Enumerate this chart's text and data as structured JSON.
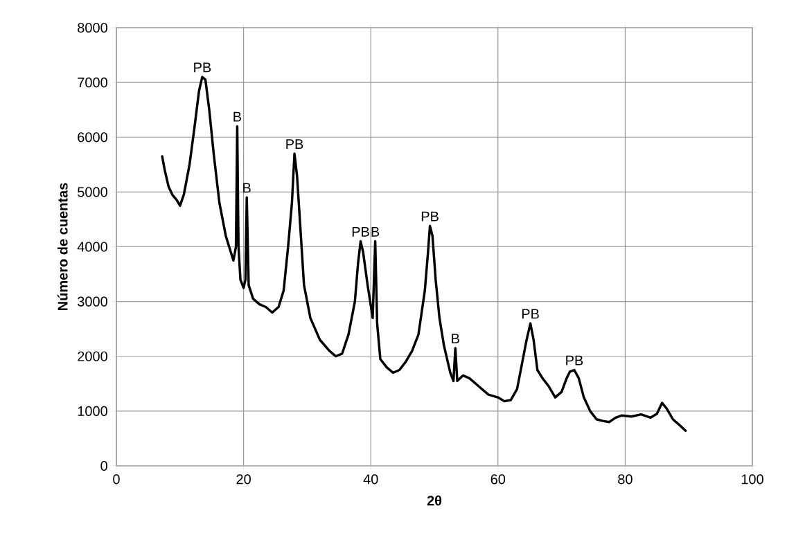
{
  "chart_data": {
    "type": "line",
    "xlabel": "2θ",
    "ylabel": "Número de cuentas",
    "x": [
      7.2,
      7.6,
      8.2,
      8.8,
      9.5,
      10.0,
      10.6,
      11.5,
      12.3,
      13.0,
      13.5,
      14.0,
      14.6,
      15.3,
      16.2,
      17.2,
      18.0,
      18.4,
      18.8,
      19.0,
      19.2,
      19.5,
      20.0,
      20.3,
      20.5,
      20.8,
      21.5,
      22.5,
      23.5,
      24.5,
      25.5,
      26.3,
      27.0,
      27.6,
      28.0,
      28.4,
      28.9,
      29.5,
      30.5,
      32,
      33.5,
      34.5,
      35.5,
      36.5,
      37.5,
      38.0,
      38.4,
      38.8,
      39.5,
      40.3,
      40.7,
      41.0,
      41.5,
      42.5,
      43.5,
      44.5,
      45.5,
      46.5,
      47.5,
      48.5,
      49.0,
      49.3,
      49.7,
      50.2,
      50.8,
      51.5,
      52.5,
      53.0,
      53.3,
      53.6,
      54.5,
      55.5,
      56.5,
      57.5,
      58.5,
      60,
      61,
      62,
      63,
      64,
      64.5,
      65.1,
      65.6,
      66.2,
      67,
      68,
      69,
      70,
      70.8,
      71.3,
      72,
      72.7,
      73.5,
      74.5,
      75.5,
      76.5,
      77.5,
      78.5,
      79.5,
      81,
      82.5,
      84,
      85,
      85.8,
      86.5,
      87.5,
      88.5,
      89.5
    ],
    "values": [
      5650,
      5400,
      5100,
      4950,
      4850,
      4750,
      4950,
      5500,
      6200,
      6850,
      7100,
      7050,
      6500,
      5700,
      4800,
      4200,
      3900,
      3750,
      4000,
      6200,
      4000,
      3400,
      3250,
      3400,
      4900,
      3300,
      3050,
      2950,
      2900,
      2800,
      2900,
      3200,
      4000,
      4800,
      5700,
      5300,
      4400,
      3300,
      2700,
      2300,
      2100,
      2000,
      2050,
      2400,
      3000,
      3700,
      4100,
      3900,
      3300,
      2700,
      4100,
      2600,
      1950,
      1800,
      1700,
      1750,
      1900,
      2100,
      2400,
      3200,
      3900,
      4380,
      4200,
      3400,
      2700,
      2200,
      1700,
      1550,
      2150,
      1550,
      1650,
      1600,
      1500,
      1400,
      1300,
      1250,
      1180,
      1200,
      1400,
      2000,
      2300,
      2600,
      2300,
      1750,
      1600,
      1450,
      1250,
      1350,
      1600,
      1720,
      1750,
      1600,
      1250,
      1000,
      850,
      820,
      800,
      880,
      920,
      900,
      940,
      880,
      950,
      1150,
      1050,
      850,
      750,
      640
    ],
    "color": "#000000",
    "marker": "none",
    "line_style": "solid",
    "grid": true,
    "xlim": [
      0,
      100
    ],
    "ylim": [
      0,
      8000
    ],
    "xticks": [
      0,
      20,
      40,
      60,
      80,
      100
    ],
    "yticks": [
      0,
      1000,
      2000,
      3000,
      4000,
      5000,
      6000,
      7000,
      8000
    ],
    "annotations": [
      {
        "text": "PB",
        "x": 13.5,
        "y": 7100
      },
      {
        "text": "B",
        "x": 19.0,
        "y": 6200
      },
      {
        "text": "B",
        "x": 20.5,
        "y": 4900
      },
      {
        "text": "PB",
        "x": 28.0,
        "y": 5700
      },
      {
        "text": "PB",
        "x": 38.4,
        "y": 4100
      },
      {
        "text": "B",
        "x": 40.7,
        "y": 4100
      },
      {
        "text": "PB",
        "x": 49.3,
        "y": 4380
      },
      {
        "text": "B",
        "x": 53.3,
        "y": 2150
      },
      {
        "text": "PB",
        "x": 65.1,
        "y": 2600
      },
      {
        "text": "PB",
        "x": 72.0,
        "y": 1750
      }
    ]
  }
}
